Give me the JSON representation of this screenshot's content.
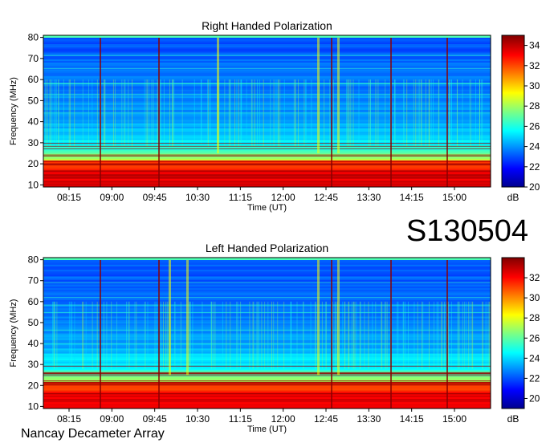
{
  "station_code": "S130504",
  "footer_label": "Nancay Decameter Array",
  "chart_data": [
    {
      "type": "heatmap",
      "title": "Right Handed Polarization",
      "xlabel": "Time (UT)",
      "ylabel": "Frequency (MHz)",
      "xticks": [
        "08:15",
        "09:00",
        "09:45",
        "10:30",
        "11:15",
        "12:00",
        "12:45",
        "13:30",
        "14:15",
        "15:00"
      ],
      "yticks": [
        10,
        20,
        30,
        40,
        50,
        60,
        70,
        80
      ],
      "ylim": [
        9,
        81
      ],
      "colorbar": {
        "label": "dB",
        "min": 20,
        "max": 35,
        "ticks": [
          20,
          22,
          24,
          26,
          28,
          30,
          32,
          34
        ]
      }
    },
    {
      "type": "heatmap",
      "title": "Left Handed Polarization",
      "xlabel": "Time (UT)",
      "ylabel": "Frequency (MHz)",
      "xticks": [
        "08:15",
        "09:00",
        "09:45",
        "10:30",
        "11:15",
        "12:00",
        "12:45",
        "13:30",
        "14:15",
        "15:00"
      ],
      "yticks": [
        10,
        20,
        30,
        40,
        50,
        60,
        70,
        80
      ],
      "ylim": [
        9,
        81
      ],
      "colorbar": {
        "label": "dB",
        "min": 19,
        "max": 34,
        "ticks": [
          20,
          22,
          24,
          26,
          28,
          30,
          32
        ]
      }
    }
  ]
}
